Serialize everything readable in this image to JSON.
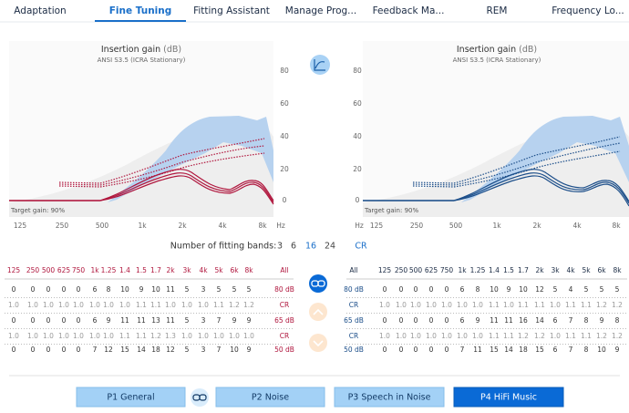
{
  "tabs": [
    "Adaptation",
    "Fine Tuning",
    "Fitting Assistant",
    "Manage Prog...",
    "Feedback Ma...",
    "REM",
    "Frequency Lo..."
  ],
  "left_chart": {
    "title": "Insertion gain",
    "unit": "(dB)",
    "subtitle": "ANSI S3.5 (ICRA Stationary)",
    "yticks": [
      "80",
      "60",
      "40",
      "20",
      "0"
    ],
    "xticks": [
      "125",
      "250",
      "500",
      "1k",
      "2k",
      "4k",
      "8k",
      "Hz"
    ],
    "note": "Target gain: 90%"
  },
  "right_chart": {
    "title": "Insertion gain",
    "unit": "(dB)",
    "subtitle": "ANSI S3.5 (ICRA Stationary)",
    "yticks": [
      "80",
      "60",
      "40",
      "20",
      "0"
    ],
    "xticks": [
      "Hz",
      "125",
      "250",
      "500",
      "1k",
      "2k",
      "4k",
      "8k"
    ],
    "note": "Target gain: 90%"
  },
  "fitting_bands": {
    "label": "Number of fitting bands:",
    "options": [
      "3",
      "6",
      "16",
      "24"
    ],
    "cr": "CR"
  },
  "left_table": {
    "header": [
      "125",
      "250",
      "500",
      "625",
      "750",
      "1k",
      "1.25",
      "1.4",
      "1.5",
      "1.7",
      "2k",
      "3k",
      "4k",
      "5k",
      "6k",
      "8k",
      "All"
    ],
    "rows": [
      [
        "0",
        "0",
        "0",
        "0",
        "0",
        "6",
        "8",
        "10",
        "9",
        "10",
        "11",
        "5",
        "3",
        "5",
        "5",
        "5",
        "80 dB"
      ],
      [
        "1.0",
        "1.0",
        "1.0",
        "1.0",
        "1.0",
        "1.0",
        "1.0",
        "1.0",
        "1.1",
        "1.1",
        "1.0",
        "1.0",
        "1.0",
        "1.1",
        "1.2",
        "1.2",
        "CR"
      ],
      [
        "0",
        "0",
        "0",
        "0",
        "0",
        "6",
        "9",
        "11",
        "11",
        "13",
        "11",
        "5",
        "3",
        "7",
        "9",
        "9",
        "65 dB"
      ],
      [
        "1.0",
        "1.0",
        "1.0",
        "1.0",
        "1.0",
        "1.0",
        "1.0",
        "1.1",
        "1.1",
        "1.2",
        "1.3",
        "1.0",
        "1.0",
        "1.0",
        "1.0",
        "1.0",
        "CR"
      ],
      [
        "0",
        "0",
        "0",
        "0",
        "0",
        "7",
        "12",
        "15",
        "14",
        "18",
        "12",
        "5",
        "3",
        "7",
        "10",
        "9",
        "50 dB"
      ]
    ]
  },
  "right_table": {
    "header": [
      "All",
      "125",
      "250",
      "500",
      "625",
      "750",
      "1k",
      "1.25",
      "1.4",
      "1.5",
      "1.7",
      "2k",
      "3k",
      "4k",
      "5k",
      "6k",
      "8k"
    ],
    "rows": [
      [
        "80 dB",
        "0",
        "0",
        "0",
        "0",
        "0",
        "6",
        "8",
        "10",
        "9",
        "10",
        "12",
        "5",
        "4",
        "5",
        "5",
        "5"
      ],
      [
        "CR",
        "1.0",
        "1.0",
        "1.0",
        "1.0",
        "1.0",
        "1.0",
        "1.0",
        "1.1",
        "1.0",
        "1.1",
        "1.1",
        "1.0",
        "1.1",
        "1.1",
        "1.2",
        "1.2"
      ],
      [
        "65 dB",
        "0",
        "0",
        "0",
        "0",
        "0",
        "6",
        "9",
        "11",
        "11",
        "16",
        "14",
        "6",
        "7",
        "8",
        "9",
        "8"
      ],
      [
        "CR",
        "1.0",
        "1.0",
        "1.0",
        "1.0",
        "1.0",
        "1.0",
        "1.0",
        "1.1",
        "1.1",
        "1.2",
        "1.2",
        "1.0",
        "1.1",
        "1.1",
        "1.2",
        "1.2"
      ],
      [
        "50 dB",
        "0",
        "0",
        "0",
        "0",
        "0",
        "7",
        "11",
        "15",
        "14",
        "18",
        "15",
        "6",
        "7",
        "8",
        "10",
        "9"
      ]
    ]
  },
  "programs": [
    "P1 General",
    "P2 Noise",
    "P3 Speech in Noise",
    "P4 HiFi Music"
  ]
}
